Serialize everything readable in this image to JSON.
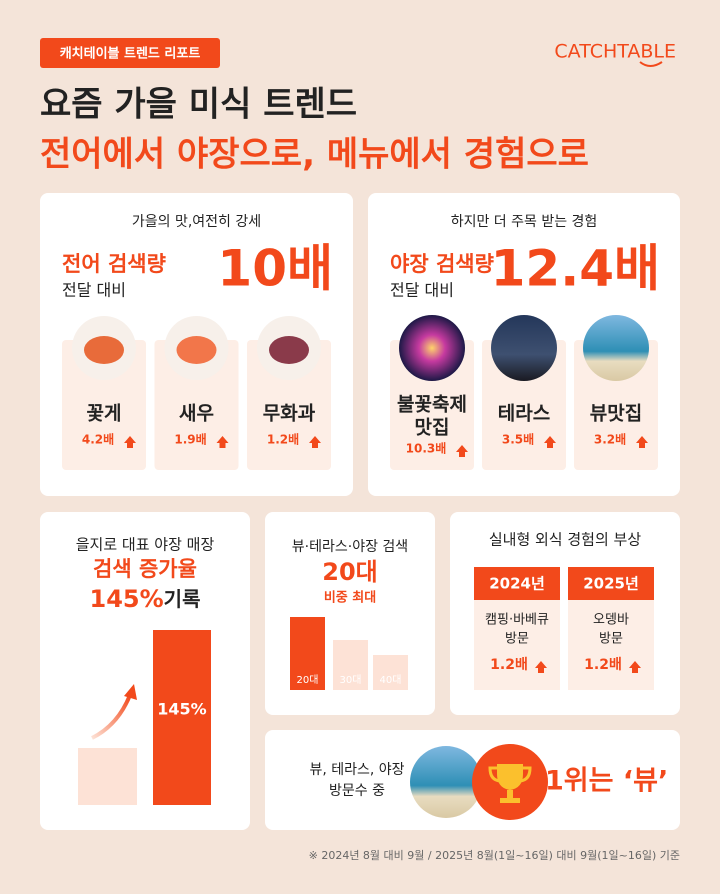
{
  "header": {
    "tag": "캐치테이블 트렌드 리포트",
    "logo": "CATCHTABLE",
    "title": "요즘 가을 미식 트렌드",
    "subtitle": "전어에서 야장으로, 메뉴에서 경험으로"
  },
  "left_panel": {
    "heading": "가을의 맛,여전히 강세",
    "metric_label": "전어 검색량",
    "metric_sub": "전달 대비",
    "metric_value": "10배",
    "items": [
      {
        "name": [
          "꽃게"
        ],
        "change": "4.2배"
      },
      {
        "name": [
          "새우"
        ],
        "change": "1.9배"
      },
      {
        "name": [
          "무화과"
        ],
        "change": "1.2배"
      }
    ]
  },
  "right_panel": {
    "heading": "하지만 더 주목 받는 경험",
    "metric_label": "야장 검색량",
    "metric_sub": "전달 대비",
    "metric_value": "12.4배",
    "items": [
      {
        "name": [
          "불꽃축제",
          "맛집"
        ],
        "change": "10.3배"
      },
      {
        "name": [
          "테라스"
        ],
        "change": "3.5배"
      },
      {
        "name": [
          "뷰맛집"
        ],
        "change": "3.2배"
      }
    ]
  },
  "store": {
    "heading": "을지로 대표 야장 매장",
    "line": "검색 증가율",
    "rate": "145%",
    "rate_suffix": "기록"
  },
  "age": {
    "heading": "뷰·테라스·야장 검색",
    "value": "20대",
    "note": "비중 최대",
    "bars": [
      "20대",
      "30대",
      "40대"
    ]
  },
  "indoor": {
    "heading": "실내형 외식 경험의 부상",
    "columns": [
      {
        "year": "2024년",
        "lines": [
          "캠핑·바베큐",
          "방문"
        ],
        "change": "1.2배"
      },
      {
        "year": "2025년",
        "lines": [
          "오뎅바",
          "방문"
        ],
        "change": "1.2배"
      }
    ]
  },
  "top_view": {
    "lines": [
      "뷰, 테라스, 야장",
      "방문수 중"
    ],
    "result": "1위는 ‘뷰’"
  },
  "footnote": "※ 2024년 8월 대비 9월 / 2025년 8월(1일~16일) 대비 9월(1일~16일) 기준"
}
